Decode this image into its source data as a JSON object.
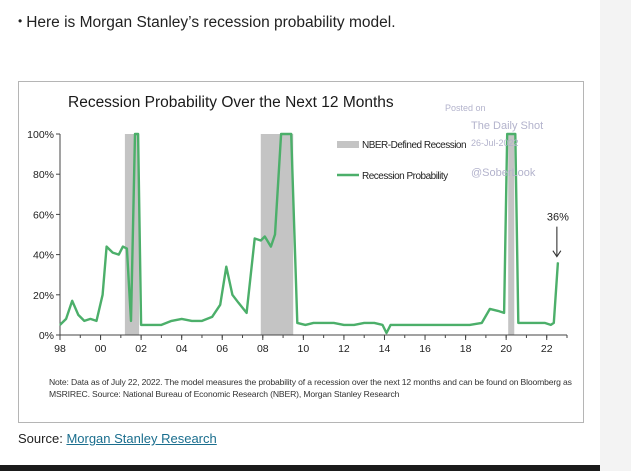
{
  "intro": {
    "bullet": "•",
    "text": "Here is Morgan Stanley’s recession probability model."
  },
  "chart_data": {
    "type": "line",
    "title": "Recession Probability Over the Next 12 Months",
    "xlabel": "",
    "ylabel": "",
    "xlim": [
      1998,
      2023
    ],
    "ylim": [
      0,
      100
    ],
    "x_ticks": [
      1998,
      2000,
      2002,
      2004,
      2006,
      2008,
      2010,
      2012,
      2014,
      2016,
      2018,
      2020,
      2022
    ],
    "x_tick_labels": [
      "98",
      "00",
      "02",
      "04",
      "06",
      "08",
      "10",
      "12",
      "14",
      "16",
      "18",
      "20",
      "22"
    ],
    "y_ticks": [
      0,
      20,
      40,
      60,
      80,
      100
    ],
    "y_tick_labels": [
      "0%",
      "20%",
      "40%",
      "60%",
      "80%",
      "100%"
    ],
    "grid": false,
    "legend_position": "top-right",
    "legend": [
      {
        "label": "NBER-Defined Recession",
        "kind": "band",
        "color": "#c4c4c4"
      },
      {
        "label": "Recession Probability",
        "kind": "line",
        "color": "#4caf6a"
      }
    ],
    "recessions": [
      {
        "start": 2001.2,
        "end": 2001.9
      },
      {
        "start": 2007.9,
        "end": 2009.5
      },
      {
        "start": 2020.1,
        "end": 2020.4
      }
    ],
    "series": [
      {
        "name": "Recession Probability",
        "color": "#4caf6a",
        "x": [
          1998.0,
          1998.3,
          1998.6,
          1998.9,
          1999.2,
          1999.5,
          1999.8,
          2000.1,
          2000.3,
          2000.6,
          2000.9,
          2001.1,
          2001.3,
          2001.5,
          2001.7,
          2001.85,
          2002.0,
          2002.3,
          2002.6,
          2003.0,
          2003.5,
          2004.0,
          2004.5,
          2005.0,
          2005.5,
          2005.9,
          2006.2,
          2006.5,
          2006.8,
          2007.2,
          2007.6,
          2007.9,
          2008.1,
          2008.4,
          2008.6,
          2008.9,
          2009.2,
          2009.4,
          2009.7,
          2010.1,
          2010.5,
          2011.0,
          2011.5,
          2012.0,
          2012.5,
          2013.0,
          2013.5,
          2013.9,
          2014.1,
          2014.3,
          2014.7,
          2015.2,
          2015.8,
          2016.4,
          2017.0,
          2017.6,
          2018.2,
          2018.8,
          2019.2,
          2019.6,
          2019.9,
          2020.05,
          2020.25,
          2020.45,
          2020.6,
          2021.0,
          2021.5,
          2021.9,
          2022.2,
          2022.35,
          2022.55
        ],
        "values": [
          5,
          8,
          17,
          10,
          7,
          8,
          7,
          20,
          44,
          41,
          40,
          44,
          43,
          7,
          100,
          100,
          5,
          5,
          5,
          5,
          7,
          8,
          7,
          7,
          9,
          15,
          34,
          20,
          16,
          11,
          48,
          47,
          49,
          44,
          50,
          100,
          100,
          100,
          6,
          5,
          6,
          6,
          6,
          5,
          5,
          6,
          6,
          5,
          1,
          5,
          5,
          5,
          5,
          5,
          5,
          5,
          5,
          6,
          13,
          12,
          11,
          100,
          100,
          100,
          6,
          6,
          6,
          6,
          5,
          6,
          36
        ]
      }
    ],
    "annotations": [
      {
        "text": "36%",
        "x": 2022.55,
        "y": 36,
        "arrow": true
      }
    ],
    "note": "Note: Data as of July 22, 2022. The model measures the probability of a recession over the next 12 months and can be found on Bloomberg as MSRIREC. Source: National Bureau of Economic Research (NBER), Morgan Stanley Research",
    "watermark": {
      "line1": "Posted on",
      "line2": "The Daily Shot",
      "line3": "26-Jul-2022",
      "line4": "@SoberLook"
    }
  },
  "source": {
    "label": "Source:",
    "link_text": "Morgan Stanley Research"
  }
}
